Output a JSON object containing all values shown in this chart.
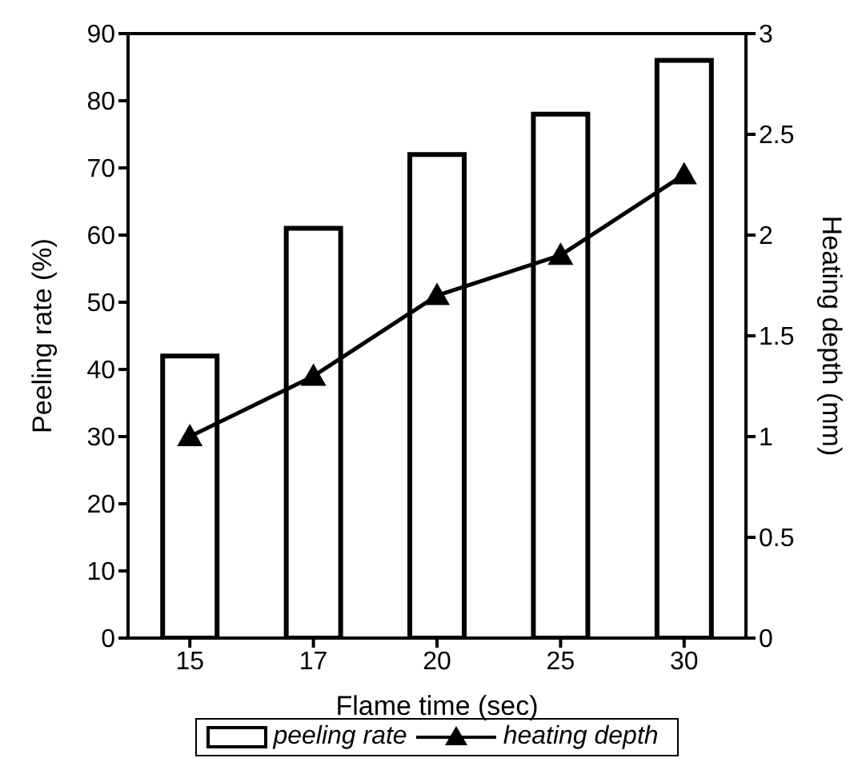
{
  "chart_data": {
    "type": "bar",
    "xlabel": "Flame time (sec)",
    "ylabel": "Peeling rate (%)",
    "y2label": "Heating depth (mm)",
    "categories": [
      "15",
      "17",
      "20",
      "25",
      "30"
    ],
    "series": [
      {
        "name": "peeling rate",
        "color": "#ffffff",
        "values": [
          42,
          61,
          72,
          78,
          86
        ]
      },
      {
        "name": "heating depth",
        "type": "line",
        "axis": "y2",
        "color": "#000000",
        "marker": "triangle",
        "line_style": "solid",
        "values": [
          1.0,
          1.3,
          1.7,
          1.9,
          2.3
        ]
      }
    ],
    "ylim": [
      0,
      90
    ],
    "yticks": [
      0,
      10,
      20,
      30,
      40,
      50,
      60,
      70,
      80,
      90
    ],
    "y2lim": [
      0,
      3
    ],
    "y2ticks": [
      0,
      0.5,
      1,
      1.5,
      2,
      2.5,
      3
    ],
    "grid": false,
    "legend": "bottom"
  }
}
